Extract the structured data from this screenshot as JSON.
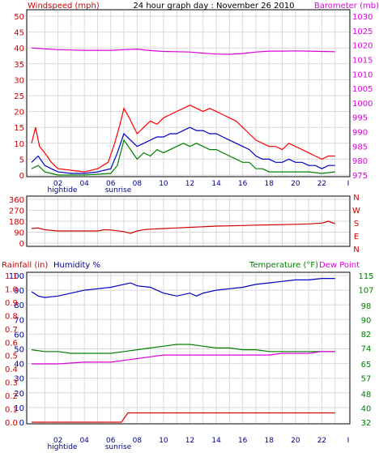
{
  "header": {
    "left_label": "Windspeed (mph)",
    "title": "24 hour graph day : November 26 2010",
    "right_label": "Barometer (mb)"
  },
  "bottom_header": {
    "rain_label": "Rainfall (in)",
    "humidity_label": "Humidity %",
    "temperature_label": "Temperature (°F)",
    "dewpoint_label": "Dew Point"
  },
  "x_axis": {
    "ticks": [
      "02",
      "04",
      "06",
      "08",
      "10",
      "12",
      "14",
      "16",
      "18",
      "20",
      "22",
      "I"
    ],
    "hightide_label": "hightide",
    "sunrise_label": "sunrise"
  },
  "colors": {
    "wind": "#ff0000",
    "gust": "#ff0000",
    "avg_wind": "#0000c0",
    "green_wind": "#008000",
    "barometer": "#dd00dd",
    "direction": "#d00000",
    "humidity": "#0000c0",
    "temperature": "#008000",
    "dewpoint": "#dd00dd",
    "rain": "#d00000",
    "grid": "#d8d8d8",
    "frame": "#000000"
  },
  "chart_data": [
    {
      "id": "wind",
      "type": "line",
      "x_unit": "hour",
      "ylim_left": [
        0,
        50
      ],
      "yticks_left": [
        "0",
        "5",
        "10",
        "15",
        "20",
        "25",
        "30",
        "35",
        "40",
        "45",
        "50"
      ],
      "ylim_right": [
        975,
        1030
      ],
      "yticks_right": [
        "975",
        "980",
        "985",
        "990",
        "995",
        "1000",
        "1005",
        "1010",
        "1015",
        "1020",
        "1025",
        "1030"
      ],
      "series": [
        {
          "key": "gust",
          "axis": "left",
          "points": [
            [
              0,
              10
            ],
            [
              0.3,
              15
            ],
            [
              0.6,
              9
            ],
            [
              1,
              7
            ],
            [
              1.5,
              4
            ],
            [
              2,
              2
            ],
            [
              3,
              1.5
            ],
            [
              4,
              1
            ],
            [
              5,
              2
            ],
            [
              5.8,
              4
            ],
            [
              6.3,
              10
            ],
            [
              6.7,
              16
            ],
            [
              7,
              21
            ],
            [
              7.4,
              18
            ],
            [
              8,
              13
            ],
            [
              8.5,
              15
            ],
            [
              9,
              17
            ],
            [
              9.5,
              16
            ],
            [
              10,
              18
            ],
            [
              10.5,
              19
            ],
            [
              11,
              20
            ],
            [
              11.5,
              21
            ],
            [
              12,
              22
            ],
            [
              12.5,
              21
            ],
            [
              13,
              20
            ],
            [
              13.5,
              21
            ],
            [
              14,
              20
            ],
            [
              14.5,
              19
            ],
            [
              15,
              18
            ],
            [
              15.5,
              17
            ],
            [
              16,
              15
            ],
            [
              16.5,
              13
            ],
            [
              17,
              11
            ],
            [
              17.5,
              10
            ],
            [
              18,
              9
            ],
            [
              18.5,
              9
            ],
            [
              19,
              8
            ],
            [
              19.5,
              10
            ],
            [
              20,
              9
            ],
            [
              20.5,
              8
            ],
            [
              21,
              7
            ],
            [
              21.5,
              6
            ],
            [
              22,
              5
            ],
            [
              22.5,
              6
            ],
            [
              23,
              6
            ]
          ]
        },
        {
          "key": "avg_wind",
          "axis": "left",
          "points": [
            [
              0,
              4
            ],
            [
              0.5,
              6
            ],
            [
              1,
              3
            ],
            [
              1.5,
              2
            ],
            [
              2,
              1
            ],
            [
              3,
              0.5
            ],
            [
              4,
              0.5
            ],
            [
              5,
              1
            ],
            [
              6,
              2
            ],
            [
              6.5,
              7
            ],
            [
              7,
              13
            ],
            [
              7.5,
              11
            ],
            [
              8,
              9
            ],
            [
              8.5,
              10
            ],
            [
              9,
              11
            ],
            [
              9.5,
              12
            ],
            [
              10,
              12
            ],
            [
              10.5,
              13
            ],
            [
              11,
              13
            ],
            [
              11.5,
              14
            ],
            [
              12,
              15
            ],
            [
              12.5,
              14
            ],
            [
              13,
              14
            ],
            [
              13.5,
              13
            ],
            [
              14,
              13
            ],
            [
              14.5,
              12
            ],
            [
              15,
              11
            ],
            [
              15.5,
              10
            ],
            [
              16,
              9
            ],
            [
              16.5,
              8
            ],
            [
              17,
              6
            ],
            [
              17.5,
              5
            ],
            [
              18,
              5
            ],
            [
              18.5,
              4
            ],
            [
              19,
              4
            ],
            [
              19.5,
              5
            ],
            [
              20,
              4
            ],
            [
              20.5,
              4
            ],
            [
              21,
              3
            ],
            [
              21.5,
              3
            ],
            [
              22,
              2
            ],
            [
              22.5,
              3
            ],
            [
              23,
              3
            ]
          ]
        },
        {
          "key": "green_wind",
          "axis": "left",
          "points": [
            [
              0,
              2
            ],
            [
              0.5,
              3
            ],
            [
              1,
              1
            ],
            [
              1.5,
              0.5
            ],
            [
              2,
              0
            ],
            [
              4,
              0
            ],
            [
              6,
              0.5
            ],
            [
              6.5,
              3
            ],
            [
              7,
              11
            ],
            [
              7.5,
              8
            ],
            [
              8,
              5
            ],
            [
              8.5,
              7
            ],
            [
              9,
              6
            ],
            [
              9.5,
              8
            ],
            [
              10,
              7
            ],
            [
              10.5,
              8
            ],
            [
              11,
              9
            ],
            [
              11.5,
              10
            ],
            [
              12,
              9
            ],
            [
              12.5,
              10
            ],
            [
              13,
              9
            ],
            [
              13.5,
              8
            ],
            [
              14,
              8
            ],
            [
              14.5,
              7
            ],
            [
              15,
              6
            ],
            [
              15.5,
              5
            ],
            [
              16,
              4
            ],
            [
              16.5,
              4
            ],
            [
              17,
              2
            ],
            [
              17.5,
              2
            ],
            [
              18,
              1
            ],
            [
              19,
              1
            ],
            [
              20,
              1
            ],
            [
              21,
              1
            ],
            [
              22,
              0.5
            ],
            [
              23,
              1
            ]
          ]
        },
        {
          "key": "barometer",
          "axis": "right",
          "points": [
            [
              0,
              1019
            ],
            [
              1,
              1018.7
            ],
            [
              2,
              1018.4
            ],
            [
              3,
              1018.3
            ],
            [
              4,
              1018.2
            ],
            [
              5,
              1018.2
            ],
            [
              6,
              1018.2
            ],
            [
              7,
              1018.4
            ],
            [
              8,
              1018.6
            ],
            [
              9,
              1018.1
            ],
            [
              10,
              1017.8
            ],
            [
              11,
              1017.7
            ],
            [
              12,
              1017.6
            ],
            [
              13,
              1017.2
            ],
            [
              14,
              1016.9
            ],
            [
              15,
              1016.8
            ],
            [
              16,
              1017.1
            ],
            [
              17,
              1017.6
            ],
            [
              18,
              1017.9
            ],
            [
              19,
              1017.9
            ],
            [
              20,
              1018.0
            ],
            [
              21,
              1017.9
            ],
            [
              22,
              1017.8
            ],
            [
              23,
              1017.7
            ]
          ]
        }
      ]
    },
    {
      "id": "direction",
      "type": "line",
      "x_unit": "hour",
      "ylim": [
        0,
        360
      ],
      "yticks": [
        "0",
        "90",
        "180",
        "270",
        "360"
      ],
      "right_labels": [
        "N",
        "W",
        "S",
        "E",
        "N"
      ],
      "series": [
        {
          "key": "direction",
          "points": [
            [
              0,
              120
            ],
            [
              0.5,
              125
            ],
            [
              1,
              110
            ],
            [
              2,
              100
            ],
            [
              3,
              100
            ],
            [
              4,
              100
            ],
            [
              5,
              100
            ],
            [
              5.5,
              110
            ],
            [
              6,
              108
            ],
            [
              7,
              95
            ],
            [
              7.5,
              80
            ],
            [
              8,
              100
            ],
            [
              8.5,
              110
            ],
            [
              9,
              115
            ],
            [
              10,
              120
            ],
            [
              11,
              125
            ],
            [
              12,
              130
            ],
            [
              13,
              135
            ],
            [
              14,
              140
            ],
            [
              15,
              142
            ],
            [
              16,
              145
            ],
            [
              17,
              148
            ],
            [
              18,
              150
            ],
            [
              19,
              152
            ],
            [
              20,
              155
            ],
            [
              21,
              158
            ],
            [
              22,
              165
            ],
            [
              22.5,
              180
            ],
            [
              23,
              160
            ]
          ]
        }
      ]
    },
    {
      "id": "climate",
      "type": "line",
      "x_unit": "hour",
      "ylim_humidity": [
        0,
        100
      ],
      "yticks_humidity": [
        "0",
        "10",
        "20",
        "30",
        "40",
        "50",
        "60",
        "70",
        "80",
        "90",
        "100"
      ],
      "yticks_rain": [
        "0.0",
        "0.1",
        "0.2",
        "0.3",
        "0.4",
        "0.5",
        "0.6",
        "0.7",
        "0.8",
        "0.9",
        "1.0",
        "1.1"
      ],
      "ylim_temperature": [
        32,
        115
      ],
      "yticks_temperature": [
        "32",
        "40",
        "48",
        "57",
        "65",
        "74",
        "82",
        "90",
        "98",
        "107",
        "115"
      ],
      "series": [
        {
          "key": "humidity",
          "points": [
            [
              0,
              89
            ],
            [
              0.5,
              86
            ],
            [
              1,
              85
            ],
            [
              2,
              86
            ],
            [
              3,
              88
            ],
            [
              4,
              90
            ],
            [
              5,
              91
            ],
            [
              6,
              92
            ],
            [
              6.5,
              93
            ],
            [
              7,
              94
            ],
            [
              7.5,
              95
            ],
            [
              8,
              93
            ],
            [
              9,
              92
            ],
            [
              10,
              88
            ],
            [
              11,
              86
            ],
            [
              12,
              88
            ],
            [
              12.5,
              86
            ],
            [
              13,
              88
            ],
            [
              14,
              90
            ],
            [
              15,
              91
            ],
            [
              16,
              92
            ],
            [
              17,
              94
            ],
            [
              18,
              95
            ],
            [
              19,
              96
            ],
            [
              20,
              97
            ],
            [
              21,
              97
            ],
            [
              22,
              98
            ],
            [
              23,
              98
            ]
          ]
        },
        {
          "key": "temperature",
          "points": [
            [
              0,
              73
            ],
            [
              1,
              72
            ],
            [
              2,
              72
            ],
            [
              3,
              71
            ],
            [
              4,
              71
            ],
            [
              5,
              71
            ],
            [
              6,
              71
            ],
            [
              7,
              72
            ],
            [
              8,
              73
            ],
            [
              9,
              74
            ],
            [
              10,
              75
            ],
            [
              11,
              76
            ],
            [
              12,
              76
            ],
            [
              13,
              75
            ],
            [
              14,
              74
            ],
            [
              15,
              74
            ],
            [
              16,
              73
            ],
            [
              17,
              73
            ],
            [
              18,
              72
            ],
            [
              19,
              72
            ],
            [
              20,
              72
            ],
            [
              21,
              72
            ],
            [
              22,
              72
            ],
            [
              23,
              72
            ]
          ]
        },
        {
          "key": "dewpoint",
          "points": [
            [
              0,
              65
            ],
            [
              2,
              65
            ],
            [
              4,
              66
            ],
            [
              6,
              66
            ],
            [
              7,
              67
            ],
            [
              8,
              68
            ],
            [
              9,
              69
            ],
            [
              10,
              70
            ],
            [
              11,
              70
            ],
            [
              12,
              70
            ],
            [
              13,
              70
            ],
            [
              14,
              70
            ],
            [
              15,
              70
            ],
            [
              16,
              70
            ],
            [
              17,
              70
            ],
            [
              18,
              70
            ],
            [
              19,
              71
            ],
            [
              20,
              71
            ],
            [
              21,
              71
            ],
            [
              22,
              72
            ],
            [
              23,
              72
            ]
          ]
        },
        {
          "key": "rain",
          "points": [
            [
              0,
              0.0
            ],
            [
              6.8,
              0.0
            ],
            [
              7.3,
              0.07
            ],
            [
              23,
              0.07
            ]
          ]
        }
      ]
    }
  ]
}
